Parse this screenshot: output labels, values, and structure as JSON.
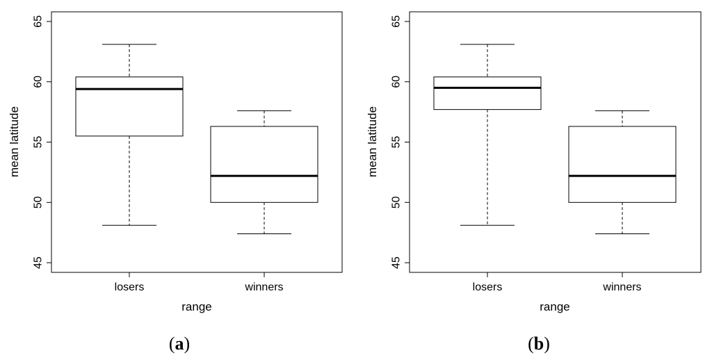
{
  "chart_data": [
    {
      "type": "boxplot",
      "panel_label": "a",
      "xlabel": "range",
      "ylabel": "mean latitude",
      "categories": [
        "losers",
        "winners"
      ],
      "yticks": [
        45,
        50,
        55,
        60,
        65
      ],
      "ylim": [
        44.2,
        65.8
      ],
      "grid": false,
      "boxes": [
        {
          "category": "losers",
          "min": 48.1,
          "q1": 55.5,
          "median": 59.4,
          "q3": 60.4,
          "max": 63.1
        },
        {
          "category": "winners",
          "min": 47.4,
          "q1": 50.0,
          "median": 52.2,
          "q3": 56.3,
          "max": 57.6
        }
      ]
    },
    {
      "type": "boxplot",
      "panel_label": "b",
      "xlabel": "range",
      "ylabel": "mean latitude",
      "categories": [
        "losers",
        "winners"
      ],
      "yticks": [
        45,
        50,
        55,
        60,
        65
      ],
      "ylim": [
        44.2,
        65.8
      ],
      "grid": false,
      "boxes": [
        {
          "category": "losers",
          "min": 48.1,
          "q1": 57.7,
          "median": 59.5,
          "q3": 60.4,
          "max": 63.1
        },
        {
          "category": "winners",
          "min": 47.4,
          "q1": 50.0,
          "median": 52.2,
          "q3": 56.3,
          "max": 57.6
        }
      ]
    }
  ]
}
